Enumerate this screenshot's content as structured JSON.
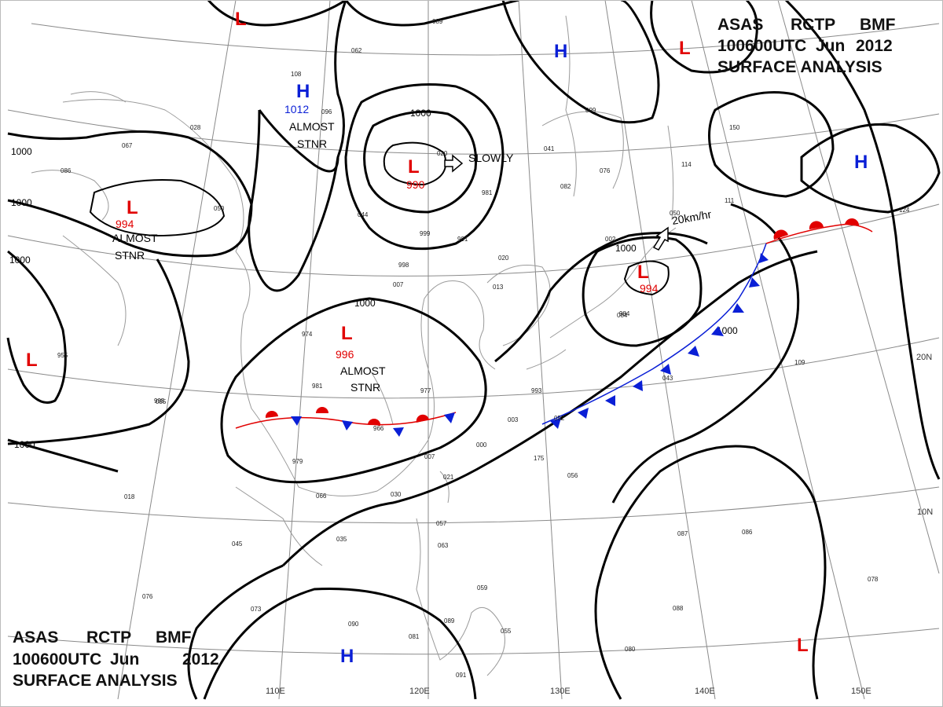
{
  "header_top": {
    "line1": [
      "ASAS",
      "RCTP",
      "BMF"
    ],
    "line2": [
      "100600UTC",
      "Jun",
      "2012"
    ],
    "line3": "SURFACE  ANALYSIS"
  },
  "header_bottom": {
    "line1": [
      "ASAS",
      "RCTP",
      "BMF"
    ],
    "line2": [
      "100600UTC",
      "Jun",
      "2012"
    ],
    "line3": "SURFACE  ANALYSIS"
  },
  "longitude_labels": [
    "110E",
    "120E",
    "130E",
    "140E",
    "150E"
  ],
  "latitude_labels": [
    "20N",
    "10N"
  ],
  "isobar_labels": [
    "1000",
    "1000",
    "1000",
    "1000",
    "1000",
    "1000",
    "1000",
    "1000"
  ],
  "pressure_centers": [
    {
      "type": "L",
      "value": "990"
    },
    {
      "type": "L",
      "value": "994"
    },
    {
      "type": "L",
      "value": "996"
    },
    {
      "type": "L",
      "value": "994"
    },
    {
      "type": "H",
      "value": "1012"
    },
    {
      "type": "L",
      "value": ""
    },
    {
      "type": "L",
      "value": ""
    },
    {
      "type": "L",
      "value": ""
    },
    {
      "type": "L",
      "value": ""
    },
    {
      "type": "H",
      "value": ""
    },
    {
      "type": "H",
      "value": ""
    },
    {
      "type": "H",
      "value": ""
    }
  ],
  "annotations": {
    "slowly": "SLOWLY",
    "speed": "20km/hr",
    "almost_stnr_1": [
      "ALMOST",
      "STNR"
    ],
    "almost_stnr_2": [
      "ALMOST",
      "STNR"
    ],
    "almost_stnr_3": [
      "ALMOST",
      "STNR"
    ]
  },
  "station_obs": [
    "089",
    "062",
    "028",
    "067",
    "050",
    "044",
    "020",
    "981",
    "999",
    "991",
    "020",
    "013",
    "998",
    "007",
    "974",
    "981",
    "966",
    "977",
    "979",
    "095",
    "000",
    "007",
    "021",
    "030",
    "056",
    "066",
    "035",
    "045",
    "076",
    "073",
    "090",
    "081",
    "089",
    "091",
    "055",
    "059",
    "057",
    "063",
    "087",
    "086",
    "088",
    "080",
    "109",
    "084",
    "043",
    "993",
    "003",
    "052",
    "002",
    "984",
    "018",
    "955",
    "995",
    "086",
    "096",
    "108",
    "041",
    "099",
    "082",
    "076",
    "114",
    "111",
    "150",
    "124",
    "078",
    "050",
    "175"
  ],
  "colors": {
    "low_center": "#e10000",
    "high_center": "#0a1fd6",
    "warm_front": "#e10000",
    "cold_front": "#0a1fd6",
    "isobar": "#000000",
    "grid": "#8a8a8a"
  }
}
